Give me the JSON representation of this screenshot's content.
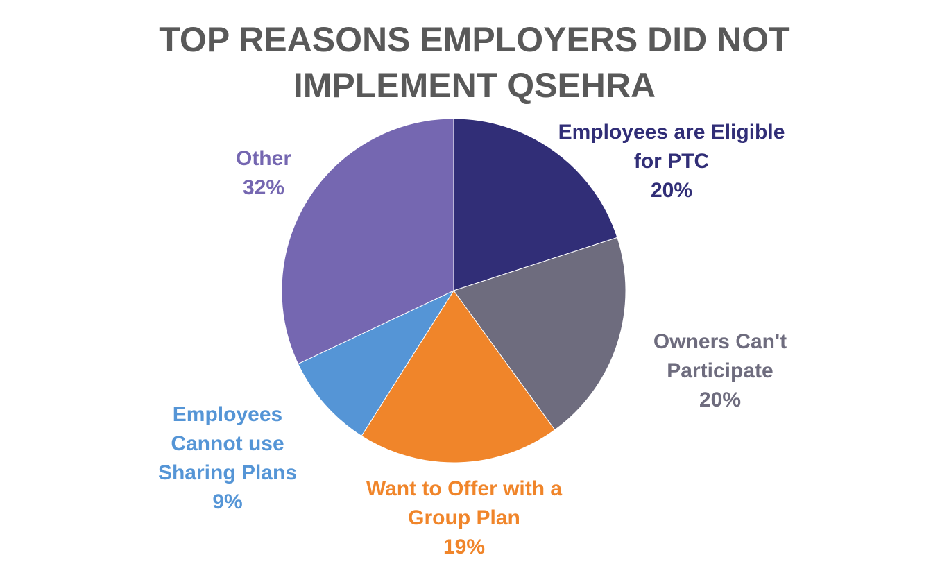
{
  "chart_data": {
    "type": "pie",
    "title_lines": [
      "TOP REASONS EMPLOYERS DID NOT",
      "IMPLEMENT QSEHRA"
    ],
    "slices": [
      {
        "name_lines": [
          "Employees are Eligible",
          "for PTC"
        ],
        "value": 20,
        "value_label": "20%",
        "color": "#312E77"
      },
      {
        "name_lines": [
          "Owners Can't",
          "Participate"
        ],
        "value": 20,
        "value_label": "20%",
        "color": "#6E6C7E"
      },
      {
        "name_lines": [
          "Want to Offer with a",
          "Group Plan"
        ],
        "value": 19,
        "value_label": "19%",
        "color": "#F0852A"
      },
      {
        "name_lines": [
          "Employees",
          "Cannot use",
          "Sharing Plans"
        ],
        "value": 9,
        "value_label": "9%",
        "color": "#5595D6"
      },
      {
        "name_lines": [
          "Other"
        ],
        "value": 32,
        "value_label": "32%",
        "color": "#7567B1"
      }
    ]
  }
}
